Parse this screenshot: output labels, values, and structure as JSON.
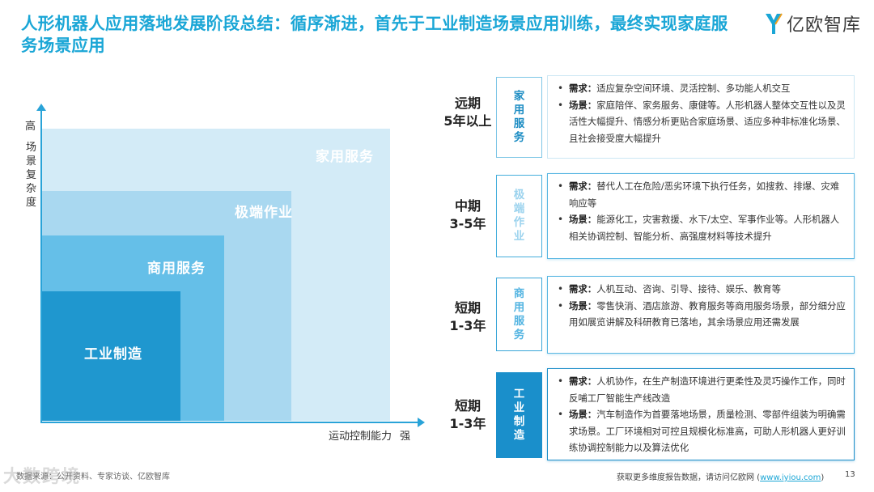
{
  "title": "人形机器人应用落地发展阶段总结：循序渐进，首先于工业制造场景应用训练，最终实现家庭服务场景应用",
  "logo": {
    "text": "亿欧智库",
    "icon": "yiou-logo-icon",
    "color": "#1aa6d6"
  },
  "diagram": {
    "y_axis_top": "高",
    "y_axis_label": "场景复杂度",
    "x_axis_label": "运动控制能力",
    "x_axis_end": "强",
    "stages": [
      "家用服务",
      "极端作业",
      "商用服务",
      "工业制造"
    ]
  },
  "rows": [
    {
      "term_line1": "远期",
      "term_line2": "5年以上",
      "tag": "家用服务",
      "demand_label": "需求：",
      "demand": "适应复杂空间环境、灵活控制、多功能人机交互",
      "scene_label": "场景：",
      "scene": "家庭陪伴、家务服务、康健等。人形机器人整体交互性以及灵活性大幅提升、情感分析更贴合家庭场景、适应多种非标准化场景、且社会接受度大幅提升"
    },
    {
      "term_line1": "中期",
      "term_line2": "3-5年",
      "tag": "极端作业",
      "demand_label": "需求：",
      "demand": "替代人工在危险/恶劣环境下执行任务，如搜救、排爆、灾难响应等",
      "scene_label": "场景：",
      "scene": "能源化工，灾害救援、水下/太空、军事作业等。人形机器人相关协调控制、智能分析、高强度材料等技术提升"
    },
    {
      "term_line1": "短期",
      "term_line2": "1-3年",
      "tag": "商用服务",
      "demand_label": "需求：",
      "demand": "人机互动、咨询、引导、接待、娱乐、教育等",
      "scene_label": "场景：",
      "scene": "零售快消、酒店旅游、教育服务等商用服务场景，部分细分应用如展览讲解及科研教育已落地，其余场景应用还需发展"
    },
    {
      "term_line1": "短期",
      "term_line2": "1-3年",
      "tag": "工业制造",
      "demand_label": "需求：",
      "demand": "人机协作，在生产制造环境进行更柔性及灵巧操作工作，同时反哺工厂智能生产线改造",
      "scene_label": "场景：",
      "scene": "汽车制造作为首要落地场景，质量检测、零部件组装为明确需求场景。工厂环境相对可控且规模化标准高，可助人形机器人更好训练协调控制能力以及算法优化"
    }
  ],
  "footer": {
    "source": "数据来源：公开资料、专家访谈、亿欧智库",
    "cta": "获取更多维度报告数据，请访问亿欧网 (",
    "link": "www.iyiou.com",
    "cta_end": ")",
    "page": "13",
    "watermark": "大数跨境"
  },
  "colors": {
    "accent": "#1aa6d6",
    "stage_home": "#d3ebf7",
    "stage_extreme": "#a9d8f0",
    "stage_commercial": "#65bfe8",
    "stage_industrial": "#1f97cf"
  }
}
